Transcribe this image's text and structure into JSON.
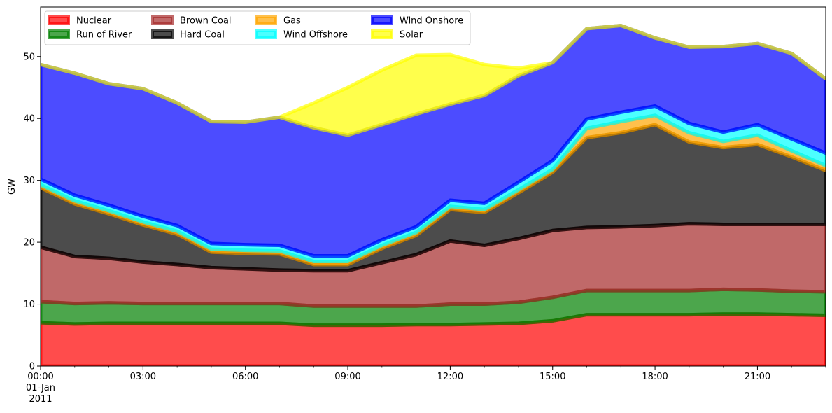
{
  "chart_data": {
    "type": "area",
    "stacked": true,
    "ylabel": "GW",
    "xlabel": "",
    "ylim": [
      0,
      58
    ],
    "yticks": [
      "0",
      "10",
      "20",
      "30",
      "40",
      "50"
    ],
    "ytick_values": [
      0,
      10,
      20,
      30,
      40,
      50
    ],
    "xticks": [
      {
        "hour": 0,
        "label": "00:00",
        "sub1": "01-Jan",
        "sub2": "2011"
      },
      {
        "hour": 3,
        "label": "03:00"
      },
      {
        "hour": 6,
        "label": "06:00"
      },
      {
        "hour": 9,
        "label": "09:00"
      },
      {
        "hour": 12,
        "label": "12:00"
      },
      {
        "hour": 15,
        "label": "15:00"
      },
      {
        "hour": 18,
        "label": "18:00"
      },
      {
        "hour": 21,
        "label": "21:00"
      }
    ],
    "xlim": [
      0,
      23
    ],
    "x": [
      0,
      1,
      2,
      3,
      4,
      5,
      6,
      7,
      8,
      9,
      10,
      11,
      12,
      13,
      14,
      15,
      16,
      17,
      18,
      19,
      20,
      21,
      22,
      23
    ],
    "grid": false,
    "legend_position": "top-left",
    "series": [
      {
        "name": "Nuclear",
        "color": "#ff0000",
        "values": [
          7.0,
          6.8,
          6.9,
          6.9,
          6.9,
          6.9,
          6.9,
          6.9,
          6.6,
          6.6,
          6.6,
          6.7,
          6.7,
          6.8,
          6.9,
          7.3,
          8.3,
          8.3,
          8.3,
          8.3,
          8.4,
          8.4,
          8.3,
          8.2
        ]
      },
      {
        "name": "Run of River",
        "color": "#008000",
        "values": [
          3.4,
          3.3,
          3.3,
          3.2,
          3.2,
          3.2,
          3.2,
          3.2,
          3.1,
          3.1,
          3.1,
          3.0,
          3.3,
          3.2,
          3.4,
          3.8,
          3.9,
          3.9,
          3.9,
          3.9,
          4.0,
          3.9,
          3.8,
          3.8
        ]
      },
      {
        "name": "Brown Coal",
        "color": "#a52a2a",
        "values": [
          8.8,
          7.6,
          7.2,
          6.7,
          6.3,
          5.8,
          5.6,
          5.4,
          5.7,
          5.7,
          7.0,
          8.3,
          10.2,
          9.5,
          10.3,
          10.8,
          10.2,
          10.3,
          10.5,
          10.8,
          10.5,
          10.6,
          10.8,
          10.9
        ]
      },
      {
        "name": "Hard Coal",
        "color": "#000000",
        "values": [
          9.6,
          8.5,
          7.2,
          6.0,
          4.9,
          2.5,
          2.5,
          2.6,
          1.0,
          1.0,
          2.3,
          3.1,
          5.1,
          5.3,
          7.4,
          9.4,
          14.5,
          15.2,
          16.3,
          13.2,
          12.4,
          12.9,
          10.9,
          8.7
        ]
      },
      {
        "name": "Gas",
        "color": "#ffa500",
        "values": [
          0.5,
          0.5,
          0.5,
          0.5,
          0.5,
          0.5,
          0.5,
          0.5,
          0.5,
          0.5,
          0.5,
          0.5,
          0.5,
          0.5,
          0.5,
          0.5,
          1.5,
          1.8,
          1.5,
          1.5,
          1.0,
          1.5,
          1.0,
          0.8
        ]
      },
      {
        "name": "Wind Offshore",
        "color": "#00ffff",
        "values": [
          0.9,
          0.9,
          0.9,
          0.9,
          0.9,
          0.9,
          0.9,
          0.9,
          0.9,
          0.9,
          0.9,
          0.9,
          1.0,
          1.0,
          1.2,
          1.4,
          1.5,
          1.5,
          1.5,
          1.5,
          1.5,
          1.7,
          1.9,
          2.0
        ]
      },
      {
        "name": "Wind Onshore",
        "color": "#0000ff",
        "values": [
          18.5,
          19.7,
          19.6,
          20.6,
          19.8,
          19.7,
          19.8,
          20.7,
          20.7,
          19.5,
          18.6,
          18.2,
          15.5,
          17.4,
          17.2,
          15.8,
          14.6,
          14.0,
          11.0,
          12.3,
          13.8,
          13.1,
          13.8,
          12.0
        ]
      },
      {
        "name": "Solar",
        "color": "#ffff00",
        "values": [
          0,
          0,
          0,
          0,
          0,
          0,
          0,
          0,
          4.0,
          7.7,
          8.8,
          9.5,
          8.0,
          5.0,
          1.2,
          0,
          0,
          0,
          0,
          0,
          0,
          0,
          0,
          0
        ]
      }
    ]
  }
}
